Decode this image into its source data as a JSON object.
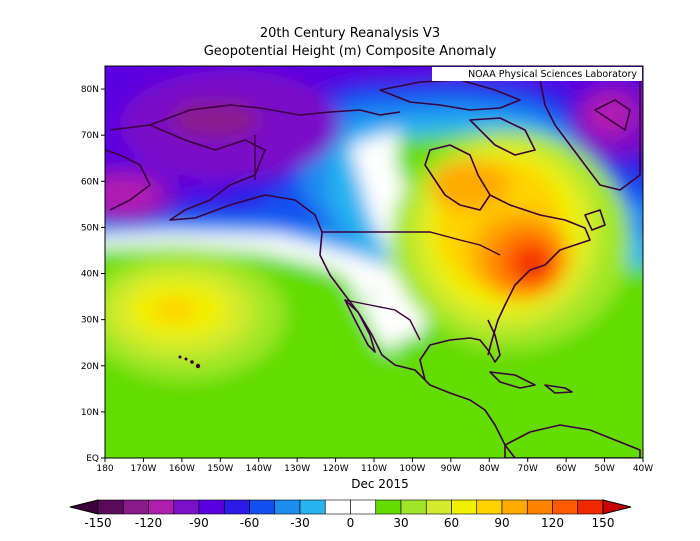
{
  "title": "20th Century Reanalysis V3",
  "subtitle": "Geopotential Height (m) Composite Anomaly",
  "credit": "NOAA Physical Sciences Laboratory",
  "date_label": "Dec 2015",
  "map": {
    "lon_range": [
      180,
      320
    ],
    "lat_range": [
      0,
      85
    ],
    "x_ticks": [
      "180",
      "170W",
      "160W",
      "150W",
      "140W",
      "130W",
      "120W",
      "110W",
      "100W",
      "90W",
      "80W",
      "70W",
      "60W",
      "50W",
      "40W"
    ],
    "y_ticks": [
      "EQ",
      "10N",
      "20N",
      "30N",
      "40N",
      "50N",
      "60N",
      "70N",
      "80N"
    ]
  },
  "colorbar": {
    "labels": [
      "-150",
      "-120",
      "-90",
      "-60",
      "-30",
      "0",
      "30",
      "60",
      "90",
      "120",
      "150"
    ],
    "colors": [
      "#5a0a5a",
      "#8a1a8a",
      "#b01eb0",
      "#7a10c8",
      "#5a00e0",
      "#2d1ae6",
      "#1450f0",
      "#1e8cf0",
      "#28b4f0",
      "#ffffff",
      "#ffffff",
      "#64dc00",
      "#a0e628",
      "#d2eb2d",
      "#f0f000",
      "#ffd200",
      "#ffaa00",
      "#ff8200",
      "#ff5a00",
      "#f02800"
    ]
  }
}
